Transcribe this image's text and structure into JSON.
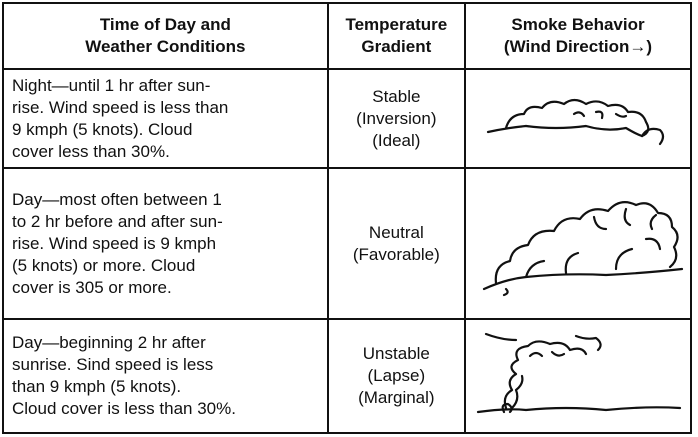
{
  "table": {
    "headers": [
      [
        "Time of Day and",
        "Weather Conditions"
      ],
      [
        "Temperature",
        "Gradient"
      ],
      [
        "Smoke Behavior",
        "(Wind Direction→)"
      ]
    ],
    "rows": [
      [
        [
          "Night—until 1 hr after sun-",
          "rise. Wind speed is less than",
          "9 kmph (5 knots). Cloud",
          "cover less than 30%."
        ],
        [
          "Stable",
          "(Inversion)",
          "(Ideal)"
        ]
      ],
      [
        [
          "Day—most often between 1",
          "to 2 hr before and after sun-",
          "rise. Wind speed is 9 kmph",
          "(5 knots) or more. Cloud",
          "cover is 305 or more."
        ],
        [
          "Neutral",
          "(Favorable)"
        ]
      ],
      [
        [
          "Day—beginning 2 hr after",
          "sunrise. Sind speed is less",
          "than 9 kmph (5 knots).",
          "Cloud cover is less than 30%."
        ],
        [
          "Unstable",
          "(Lapse)",
          "(Marginal)"
        ]
      ]
    ]
  }
}
